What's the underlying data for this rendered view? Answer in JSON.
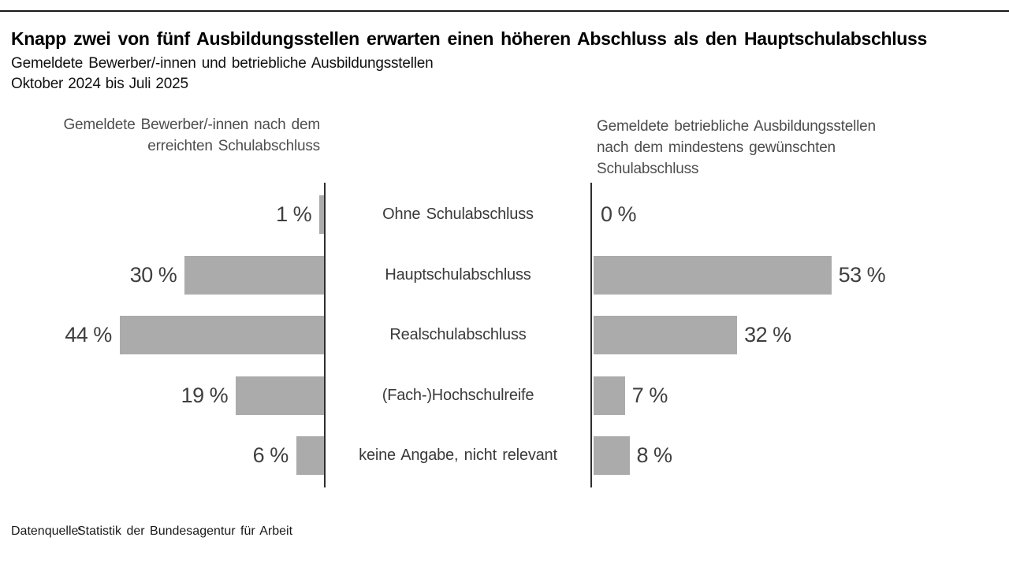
{
  "header": {
    "title": "Knapp zwei von fünf Ausbildungsstellen erwarten einen höheren Abschluss als den Hauptschulabschluss",
    "subtitle": "Gemeldete Bewerber/-innen und betriebliche Ausbildungsstellen",
    "period": "Oktober 2024 bis Juli 2025"
  },
  "panels": {
    "left": {
      "header_lines": [
        "Gemeldete Bewerber/-innen nach dem",
        "erreichten Schulabschluss"
      ]
    },
    "right": {
      "header_lines": [
        "Gemeldete betriebliche Ausbildungsstellen",
        "nach dem mindestens gewünschten",
        "Schulabschluss"
      ]
    }
  },
  "chart_data": {
    "type": "bar",
    "orientation": "horizontal-butterfly",
    "categories": [
      "Ohne Schulabschluss",
      "Hauptschulabschluss",
      "Realschulabschluss",
      "(Fach-)Hochschulreife",
      "keine Angabe, nicht relevant"
    ],
    "series": [
      {
        "name": "Gemeldete Bewerber/-innen nach dem erreichten Schulabschluss",
        "side": "left",
        "values": [
          1,
          30,
          44,
          19,
          6
        ],
        "value_labels": [
          "1 %",
          "30 %",
          "44 %",
          "19 %",
          "6 %"
        ]
      },
      {
        "name": "Gemeldete betriebliche Ausbildungsstellen nach dem mindestens gewünschten Schulabschluss",
        "side": "right",
        "values": [
          0,
          53,
          32,
          7,
          8
        ],
        "value_labels": [
          "0 %",
          "53 %",
          "32 %",
          "7 %",
          "8 %"
        ]
      }
    ],
    "unit": "%",
    "xlim": [
      0,
      58
    ],
    "grid": false,
    "legend": "none",
    "bar_color": "#ABABAB",
    "axis_color": "#2E2E2E",
    "value_label_color": "#3F3F3F"
  },
  "footer": {
    "label": "Datenquelle:",
    "source": "Statistik der Bundesagentur für Arbeit"
  }
}
